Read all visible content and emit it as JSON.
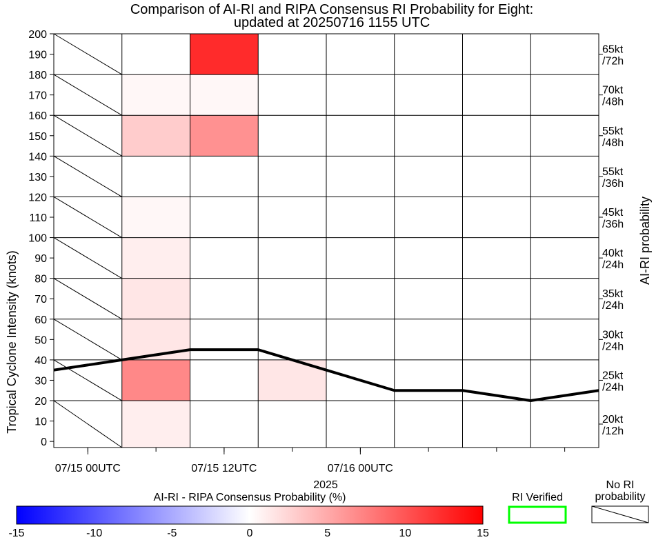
{
  "chart_data": {
    "type": "heatmap",
    "title": "Comparison of AI-RI and RIPA Consensus RI Probability for Eight:",
    "subtitle": "updated at 20250716 1155 UTC",
    "ylabel": "Tropical Cyclone Intensity (knots)",
    "right_label": "AI-RI probability",
    "ylim": [
      -3,
      200
    ],
    "y_ticks": [
      0,
      10,
      20,
      30,
      40,
      50,
      60,
      70,
      80,
      90,
      100,
      110,
      120,
      130,
      140,
      150,
      160,
      170,
      180,
      190,
      200
    ],
    "y_tick_labels": [
      "0",
      "10",
      "20",
      "30",
      "40",
      "50",
      "60",
      "70",
      "80",
      "90",
      "100",
      "110",
      "120",
      "130",
      "140",
      "150",
      "160",
      "170",
      "180",
      "190",
      "200"
    ],
    "x_hours_range": [
      -3,
      45
    ],
    "x_tick_labels": [
      {
        "hour": 0,
        "label": "07/15 00UTC"
      },
      {
        "hour": 12,
        "label": "07/15 12UTC"
      },
      {
        "hour": 24,
        "label": "07/16 00UTC"
      }
    ],
    "x_minor_hours": [
      0,
      6,
      12,
      18,
      24,
      30,
      36,
      42
    ],
    "year_label": "2025",
    "column_hours": [
      -3,
      3,
      9,
      15,
      21,
      27,
      33,
      39
    ],
    "row_thresholds": [
      {
        "kt": "20kt",
        "h": "/12h"
      },
      {
        "kt": "25kt",
        "h": "/24h"
      },
      {
        "kt": "30kt",
        "h": "/24h"
      },
      {
        "kt": "35kt",
        "h": "/24h"
      },
      {
        "kt": "40kt",
        "h": "/24h"
      },
      {
        "kt": "45kt",
        "h": "/36h"
      },
      {
        "kt": "55kt",
        "h": "/36h"
      },
      {
        "kt": "55kt",
        "h": "/48h"
      },
      {
        "kt": "70kt",
        "h": "/48h"
      },
      {
        "kt": "65kt",
        "h": "/72h"
      }
    ],
    "probability_diff": [
      [
        null,
        1,
        0,
        0,
        0,
        0,
        0,
        0
      ],
      [
        null,
        7,
        0,
        1.5,
        0,
        0,
        0,
        0
      ],
      [
        null,
        1.5,
        0,
        0,
        0,
        0,
        0,
        0
      ],
      [
        null,
        1.5,
        0,
        0,
        0,
        0,
        0,
        0
      ],
      [
        null,
        1,
        0,
        0,
        0,
        0,
        0,
        0
      ],
      [
        null,
        0.5,
        0,
        0,
        0,
        0,
        0,
        0
      ],
      [
        null,
        0,
        0,
        0,
        0,
        0,
        0,
        0
      ],
      [
        null,
        3,
        6.5,
        0,
        0,
        0,
        0,
        0
      ],
      [
        null,
        0.5,
        0.5,
        0,
        0,
        0,
        0,
        0
      ],
      [
        null,
        0,
        12.5,
        0,
        0,
        0,
        0,
        0
      ]
    ],
    "series": [
      {
        "name": "Intensity",
        "x": [
          -3,
          3,
          9,
          15,
          21,
          27,
          33,
          39,
          45
        ],
        "values": [
          35,
          40,
          45,
          45,
          35,
          25,
          25,
          20,
          25
        ]
      }
    ],
    "colorbar": {
      "title": "AI-RI - RIPA Consensus Probability (%)",
      "range": [
        -15,
        15
      ],
      "ticks": [
        -15,
        -10,
        -5,
        0,
        5,
        10,
        15
      ],
      "tick_labels": [
        "-15",
        "-10",
        "-5",
        "0",
        "5",
        "10",
        "15"
      ],
      "low_color": "#0000ff",
      "mid_color": "#ffffff",
      "high_color": "#ff0000"
    },
    "legend": {
      "verified_label": "RI Verified",
      "verified_color": "#00ff00",
      "no_prob_line1": "No RI",
      "no_prob_line2": "probability"
    }
  }
}
